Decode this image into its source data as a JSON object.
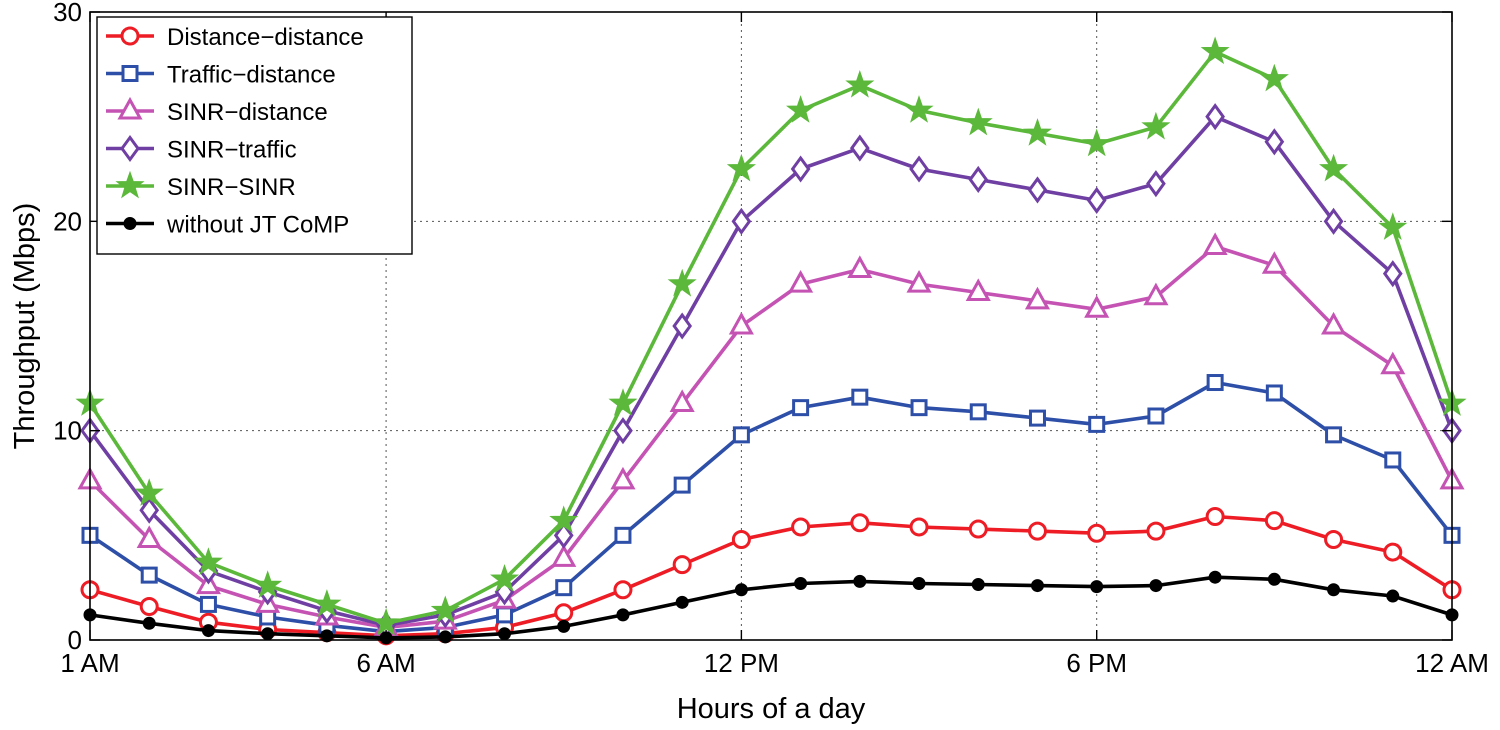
{
  "chart_data": {
    "type": "line",
    "title": "",
    "xlabel": "Hours of a day",
    "ylabel": "Throughput (Mbps)",
    "ylim": [
      0,
      30
    ],
    "xlim": [
      1,
      24
    ],
    "grid": true,
    "legend_position": "top-left",
    "x": [
      1,
      2,
      3,
      4,
      5,
      6,
      7,
      8,
      9,
      10,
      11,
      12,
      13,
      14,
      15,
      16,
      17,
      18,
      19,
      20,
      21,
      22,
      23,
      24
    ],
    "x_ticks": [
      {
        "x": 1,
        "label": "1 AM"
      },
      {
        "x": 6,
        "label": "6 AM"
      },
      {
        "x": 12,
        "label": "12 PM"
      },
      {
        "x": 18,
        "label": "6 PM"
      },
      {
        "x": 24,
        "label": "12 AM"
      }
    ],
    "y_ticks": [
      {
        "y": 0,
        "label": "0"
      },
      {
        "y": 10,
        "label": "10"
      },
      {
        "y": 20,
        "label": "20"
      },
      {
        "y": 30,
        "label": "30"
      }
    ],
    "series": [
      {
        "name": "Distance−distance",
        "color": "#ee1c25",
        "marker": "circle",
        "values": [
          2.4,
          1.6,
          0.85,
          0.5,
          0.35,
          0.2,
          0.3,
          0.6,
          1.3,
          2.4,
          3.6,
          4.8,
          5.4,
          5.6,
          5.4,
          5.3,
          5.2,
          5.1,
          5.2,
          5.9,
          5.7,
          4.8,
          4.2,
          2.4
        ]
      },
      {
        "name": "Traffic−distance",
        "color": "#2e4fa8",
        "marker": "square",
        "values": [
          5.0,
          3.1,
          1.7,
          1.1,
          0.7,
          0.4,
          0.6,
          1.2,
          2.5,
          5.0,
          7.4,
          9.8,
          11.1,
          11.6,
          11.1,
          10.9,
          10.6,
          10.3,
          10.7,
          12.3,
          11.8,
          9.8,
          8.6,
          5.0
        ]
      },
      {
        "name": "SINR−distance",
        "color": "#c453b4",
        "marker": "triangle",
        "values": [
          7.6,
          4.8,
          2.6,
          1.7,
          1.1,
          0.6,
          0.9,
          1.9,
          3.9,
          7.6,
          11.3,
          15.0,
          17.0,
          17.7,
          17.0,
          16.6,
          16.2,
          15.8,
          16.4,
          18.8,
          17.9,
          15.0,
          13.1,
          7.6
        ]
      },
      {
        "name": "SINR−traffic",
        "color": "#6f3fa3",
        "marker": "diamond",
        "values": [
          10.0,
          6.2,
          3.3,
          2.3,
          1.4,
          0.7,
          1.2,
          2.3,
          5.0,
          10.0,
          15.0,
          20.0,
          22.5,
          23.5,
          22.5,
          22.0,
          21.5,
          21.0,
          21.8,
          25.0,
          23.8,
          20.0,
          17.5,
          10.0
        ]
      },
      {
        "name": "SINR−SINR",
        "color": "#5bb83a",
        "marker": "star",
        "values": [
          11.3,
          7.0,
          3.7,
          2.6,
          1.7,
          0.8,
          1.4,
          2.9,
          5.7,
          11.3,
          17.0,
          22.5,
          25.3,
          26.5,
          25.3,
          24.7,
          24.2,
          23.7,
          24.5,
          28.1,
          26.8,
          22.5,
          19.7,
          11.3
        ]
      },
      {
        "name": "without JT CoMP",
        "color": "#000000",
        "marker": "dot",
        "values": [
          1.2,
          0.8,
          0.45,
          0.3,
          0.2,
          0.1,
          0.15,
          0.3,
          0.65,
          1.2,
          1.8,
          2.4,
          2.7,
          2.8,
          2.7,
          2.65,
          2.6,
          2.55,
          2.6,
          3.0,
          2.9,
          2.4,
          2.1,
          1.2
        ]
      }
    ]
  }
}
